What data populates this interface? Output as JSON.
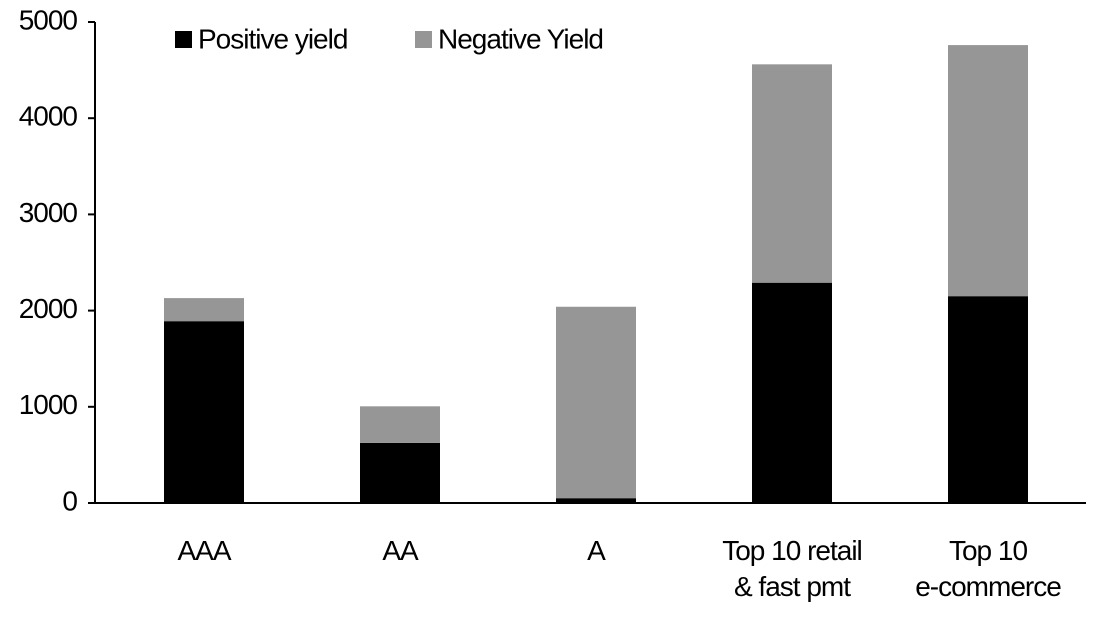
{
  "chart_data": {
    "type": "stacked-bar",
    "categories": [
      "AAA",
      "AA",
      "A",
      "Top 10 retail\n& fast pmt",
      "Top 10\ne-commerce"
    ],
    "series": [
      {
        "name": "Positive yield",
        "color": "#000000",
        "values": [
          1890,
          625,
          50,
          2290,
          2150
        ]
      },
      {
        "name": "Negative Yield",
        "color": "#969696",
        "values": [
          240,
          380,
          1990,
          2270,
          2610
        ]
      }
    ],
    "ylim": [
      0,
      5000
    ],
    "yticks": [
      0,
      1000,
      2000,
      3000,
      4000,
      5000
    ],
    "legend": "top-left"
  }
}
